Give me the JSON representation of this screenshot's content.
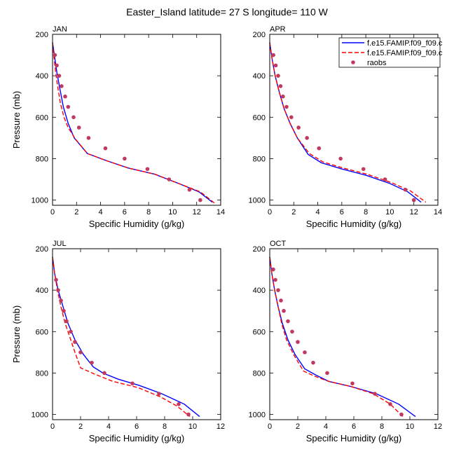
{
  "title": "Easter_Island  latitude= 27 S longitude= 110 W",
  "legend": {
    "entries": [
      {
        "label": "f.e15.FAMIP.f09_f09.c",
        "style": "solid",
        "color": "#0000ff"
      },
      {
        "label": "f.e15.FAMIP.f09_f09.c",
        "style": "dashed",
        "color": "#ff0000"
      },
      {
        "label": "raobs",
        "style": "marker",
        "color": "#c0395e"
      }
    ]
  },
  "chart_data": [
    {
      "type": "line",
      "month": "JAN",
      "xlabel": "Specific Humidity (g/kg)",
      "ylabel": "Pressure (mb)",
      "xlim": [
        0,
        14
      ],
      "ylim": [
        1025,
        200
      ],
      "xticks": [
        0,
        2,
        4,
        6,
        8,
        10,
        12,
        14
      ],
      "yticks": [
        200,
        400,
        600,
        800,
        1000
      ],
      "series": [
        {
          "name": "f.e15.FAMIP.f09_f09.c (solid)",
          "x": [
            0.0,
            0.15,
            0.35,
            0.6,
            0.9,
            1.3,
            1.8,
            2.9,
            4.5,
            6.3,
            8.5,
            10.5,
            12.2,
            13.3
          ],
          "y": [
            240,
            300,
            380,
            460,
            550,
            630,
            700,
            775,
            810,
            845,
            875,
            920,
            960,
            1010
          ]
        },
        {
          "name": "f.e15.FAMIP.f09_f09.c (dashed)",
          "x": [
            0.0,
            0.1,
            0.25,
            0.45,
            0.65,
            0.95,
            1.3,
            1.9,
            2.9,
            4.5,
            6.3,
            8.5,
            10.5,
            12.3,
            13.5
          ],
          "y": [
            240,
            300,
            380,
            460,
            530,
            600,
            650,
            705,
            775,
            810,
            845,
            875,
            920,
            960,
            1015
          ]
        }
      ],
      "raobs": {
        "x": [
          0.2,
          0.35,
          0.55,
          0.75,
          1.05,
          1.3,
          1.75,
          2.2,
          3.0,
          4.4,
          6.0,
          7.9,
          9.7,
          11.4,
          12.3
        ],
        "y": [
          300,
          350,
          400,
          450,
          500,
          550,
          600,
          650,
          700,
          750,
          800,
          850,
          900,
          950,
          1000
        ]
      }
    },
    {
      "type": "line",
      "month": "APR",
      "xlabel": "Specific Humidity (g/kg)",
      "ylabel": "",
      "xlim": [
        0,
        14
      ],
      "ylim": [
        1025,
        200
      ],
      "xticks": [
        0,
        2,
        4,
        6,
        8,
        10,
        12,
        14
      ],
      "yticks": [
        200,
        400,
        600,
        800,
        1000
      ],
      "series": [
        {
          "name": "f.e15.FAMIP.f09_f09.c (solid)",
          "x": [
            0.0,
            0.2,
            0.45,
            0.8,
            1.2,
            1.7,
            2.3,
            3.2,
            4.3,
            6.0,
            8.0,
            10.0,
            11.5,
            12.6
          ],
          "y": [
            240,
            320,
            400,
            480,
            560,
            630,
            700,
            780,
            820,
            850,
            880,
            920,
            960,
            1010
          ]
        },
        {
          "name": "f.e15.FAMIP.f09_f09.c (dashed)",
          "x": [
            0.0,
            0.2,
            0.45,
            0.8,
            1.2,
            1.7,
            2.3,
            3.3,
            4.4,
            6.1,
            8.1,
            10.1,
            11.7,
            13.0
          ],
          "y": [
            240,
            320,
            400,
            480,
            560,
            630,
            700,
            775,
            815,
            845,
            875,
            915,
            955,
            1010
          ]
        }
      ],
      "raobs": {
        "x": [
          0.3,
          0.5,
          0.7,
          0.9,
          1.1,
          1.4,
          1.8,
          2.4,
          3.1,
          4.1,
          5.9,
          7.8,
          9.6,
          11.3,
          12.0
        ],
        "y": [
          300,
          350,
          400,
          450,
          500,
          550,
          600,
          650,
          700,
          750,
          800,
          850,
          900,
          950,
          1000
        ]
      }
    },
    {
      "type": "line",
      "month": "JUL",
      "xlabel": "Specific Humidity (g/kg)",
      "ylabel": "Pressure (mb)",
      "xlim": [
        0,
        12
      ],
      "ylim": [
        1025,
        200
      ],
      "xticks": [
        0,
        2,
        4,
        6,
        8,
        10,
        12
      ],
      "yticks": [
        200,
        400,
        600,
        800,
        1000
      ],
      "series": [
        {
          "name": "f.e15.FAMIP.f09_f09.c (solid)",
          "x": [
            0.0,
            0.15,
            0.4,
            0.75,
            1.1,
            1.6,
            2.2,
            2.9,
            3.6,
            4.7,
            6.2,
            7.8,
            9.4,
            10.5
          ],
          "y": [
            240,
            320,
            400,
            480,
            560,
            640,
            710,
            770,
            800,
            830,
            860,
            900,
            950,
            1010
          ]
        },
        {
          "name": "f.e15.FAMIP.f09_f09.c (dashed)",
          "x": [
            0.0,
            0.15,
            0.35,
            0.6,
            0.9,
            1.3,
            1.6,
            2.0,
            3.0,
            4.3,
            6.1,
            7.7,
            8.9,
            9.8
          ],
          "y": [
            240,
            320,
            400,
            480,
            560,
            640,
            700,
            775,
            805,
            840,
            870,
            915,
            960,
            1010
          ]
        }
      ],
      "raobs": {
        "x": [
          0.25,
          0.4,
          0.6,
          0.8,
          1.0,
          1.3,
          1.6,
          2.0,
          2.8,
          3.7,
          5.7,
          7.6,
          9.0,
          9.7
        ],
        "y": [
          350,
          400,
          450,
          500,
          550,
          600,
          650,
          700,
          750,
          800,
          850,
          900,
          950,
          1000
        ]
      }
    },
    {
      "type": "line",
      "month": "OCT",
      "xlabel": "Specific Humidity (g/kg)",
      "ylabel": "",
      "xlim": [
        0,
        12
      ],
      "ylim": [
        1025,
        200
      ],
      "xticks": [
        0,
        2,
        4,
        6,
        8,
        10,
        12
      ],
      "yticks": [
        200,
        400,
        600,
        800,
        1000
      ],
      "series": [
        {
          "name": "f.e15.FAMIP.f09_f09.c (solid)",
          "x": [
            0.0,
            0.15,
            0.35,
            0.6,
            0.9,
            1.3,
            1.8,
            2.5,
            3.3,
            4.2,
            5.8,
            7.6,
            9.2,
            10.4
          ],
          "y": [
            240,
            320,
            400,
            480,
            560,
            640,
            710,
            780,
            810,
            840,
            865,
            900,
            950,
            1010
          ]
        },
        {
          "name": "f.e15.FAMIP.f09_f09.c (dashed)",
          "x": [
            0.0,
            0.15,
            0.35,
            0.6,
            0.85,
            1.2,
            1.7,
            2.4,
            3.2,
            4.2,
            5.8,
            7.4,
            8.6,
            9.5
          ],
          "y": [
            240,
            320,
            400,
            480,
            560,
            640,
            710,
            790,
            815,
            840,
            865,
            900,
            950,
            1010
          ]
        }
      ],
      "raobs": {
        "x": [
          0.25,
          0.4,
          0.6,
          0.8,
          1.0,
          1.3,
          1.6,
          2.0,
          2.5,
          3.1,
          4.1,
          5.9,
          7.5,
          8.6,
          9.4
        ],
        "y": [
          300,
          350,
          400,
          450,
          500,
          550,
          600,
          650,
          700,
          750,
          800,
          850,
          900,
          950,
          1000
        ]
      }
    }
  ]
}
